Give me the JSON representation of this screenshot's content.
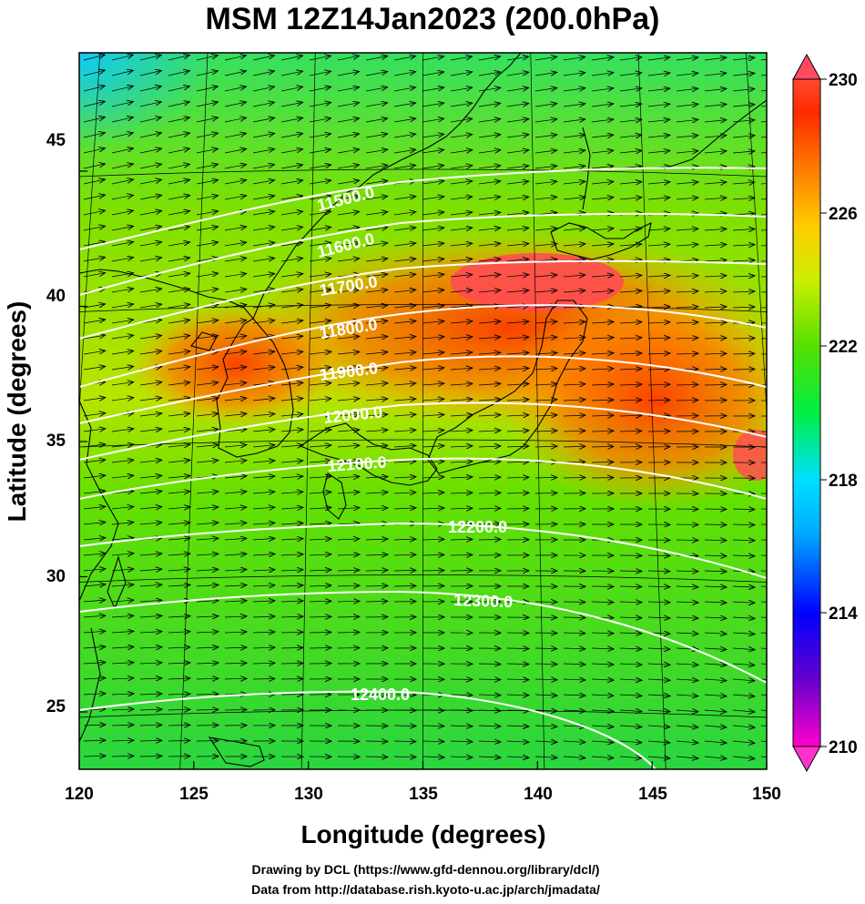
{
  "title": "MSM 12Z14Jan2023 (200.0hPa)",
  "x_axis": {
    "label": "Longitude (degrees)",
    "ticks": [
      "120",
      "125",
      "130",
      "135",
      "140",
      "145",
      "150"
    ]
  },
  "y_axis": {
    "label": "Latitude  (degrees)",
    "ticks": [
      "45",
      "40",
      "35",
      "30",
      "25"
    ]
  },
  "colorbar": {
    "ticks": [
      "230",
      "226",
      "222",
      "218",
      "214",
      "210"
    ],
    "colors": [
      "#ff00cc",
      "#6600cc",
      "#0000ff",
      "#00aaff",
      "#00e0ff",
      "#00ee44",
      "#55e000",
      "#ccee00",
      "#ffcc00",
      "#ff7700",
      "#ff2a00",
      "#ff6060"
    ]
  },
  "contours": [
    "11500.0",
    "11600.0",
    "11700.0",
    "11800.0",
    "11900.0",
    "12000.0",
    "12100.0",
    "12200.0",
    "12300.0",
    "12400.0"
  ],
  "credits": {
    "line1": "Drawing by DCL (https://www.gfd-dennou.org/library/dcl/)",
    "line2": "Data from http://database.rish.kyoto-u.ac.jp/arch/jmadata/"
  }
}
